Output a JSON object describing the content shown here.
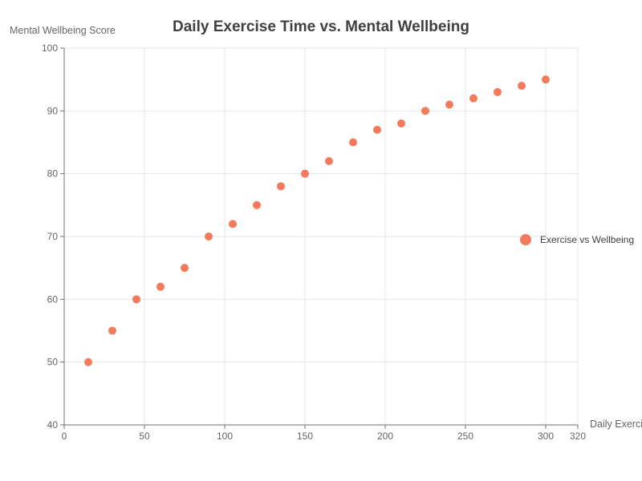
{
  "chart_data": {
    "type": "scatter",
    "title": "Daily Exercise Time vs. Mental Wellbeing",
    "xlabel": "Daily Exerci",
    "ylabel": "Mental Wellbeing Score",
    "xlim": [
      0,
      320
    ],
    "ylim": [
      40,
      100
    ],
    "xticks": [
      0,
      50,
      100,
      150,
      200,
      250,
      300,
      320
    ],
    "yticks": [
      40,
      50,
      60,
      70,
      80,
      90,
      100
    ],
    "grid": true,
    "legend_position": "right",
    "series": [
      {
        "name": "Exercise vs Wellbeing",
        "color": "#f47a5c",
        "points": [
          [
            15,
            50
          ],
          [
            30,
            55
          ],
          [
            45,
            60
          ],
          [
            60,
            62
          ],
          [
            75,
            65
          ],
          [
            90,
            70
          ],
          [
            105,
            72
          ],
          [
            120,
            75
          ],
          [
            135,
            78
          ],
          [
            150,
            80
          ],
          [
            165,
            82
          ],
          [
            180,
            85
          ],
          [
            195,
            87
          ],
          [
            210,
            88
          ],
          [
            225,
            90
          ],
          [
            240,
            91
          ],
          [
            255,
            92
          ],
          [
            270,
            93
          ],
          [
            285,
            94
          ],
          [
            300,
            95
          ]
        ]
      }
    ]
  }
}
